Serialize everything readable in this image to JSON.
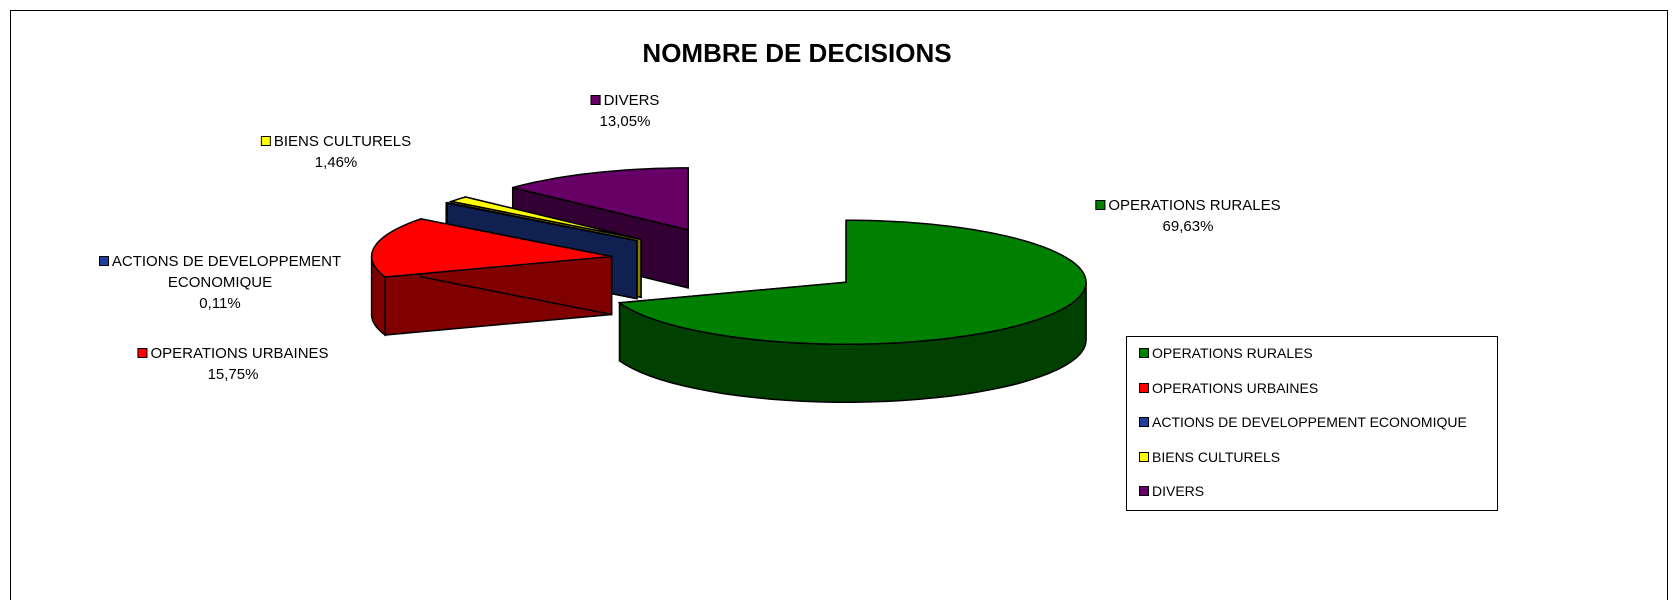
{
  "chart_data": {
    "type": "pie",
    "title": "NOMBRE DE DECISIONS",
    "categories": [
      "OPERATIONS RURALES",
      "OPERATIONS URBAINES",
      "ACTIONS DE DEVELOPPEMENT ECONOMIQUE",
      "BIENS CULTURELS",
      "DIVERS"
    ],
    "values": [
      69.63,
      15.75,
      0.11,
      1.46,
      13.05
    ],
    "value_labels": [
      "69,63%",
      "15,75%",
      "0,11%",
      "1,46%",
      "13,05%"
    ],
    "colors": [
      "#008000",
      "#ff0000",
      "#1f3f9f",
      "#ffff00",
      "#660066"
    ],
    "legend": "right"
  }
}
